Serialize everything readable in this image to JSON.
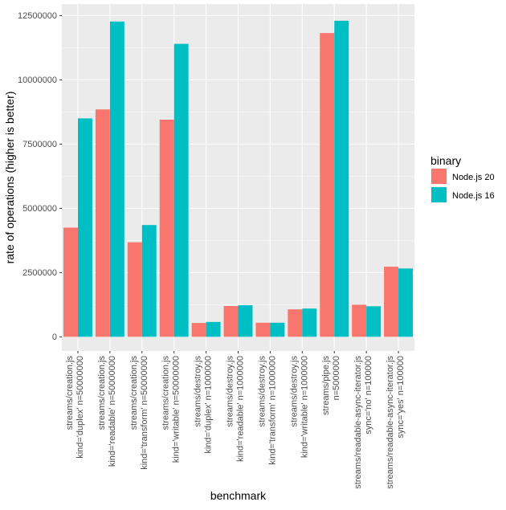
{
  "chart_data": {
    "type": "bar",
    "xlabel": "benchmark",
    "ylabel": "rate of operations (higher is better)",
    "ylim": [
      -550000,
      12950000
    ],
    "y_ticks": [
      0,
      2500000,
      5000000,
      7500000,
      10000000,
      12500000
    ],
    "y_tick_labels": [
      "0",
      "2500000",
      "5000000",
      "7500000",
      "10000000",
      "12500000"
    ],
    "grid": true,
    "legend": {
      "title": "binary",
      "placement": "right"
    },
    "categories": [
      [
        "streams/creation.js",
        "kind='duplex' n=50000000"
      ],
      [
        "streams/creation.js",
        "kind='readable' n=50000000"
      ],
      [
        "streams/creation.js",
        "kind='transform' n=50000000"
      ],
      [
        "streams/creation.js",
        "kind='writable' n=50000000"
      ],
      [
        "streams/destroy.js",
        "kind='duplex' n=1000000"
      ],
      [
        "streams/destroy.js",
        "kind='readable' n=1000000"
      ],
      [
        "streams/destroy.js",
        "kind='transform' n=1000000"
      ],
      [
        "streams/destroy.js",
        "kind='writable' n=1000000"
      ],
      [
        "streams/pipe.js",
        "n=5000000"
      ],
      [
        "streams/readable-async-iterator.js",
        "sync='no' n=100000"
      ],
      [
        "streams/readable-async-iterator.js",
        "sync='yes' n=100000"
      ]
    ],
    "series": [
      {
        "name": "Node.js 20",
        "color": "#F8766D",
        "values": [
          4250000,
          8850000,
          3680000,
          8450000,
          540000,
          1200000,
          550000,
          1070000,
          11820000,
          1250000,
          2730000
        ]
      },
      {
        "name": "Node.js 16",
        "color": "#00BFC4",
        "values": [
          8500000,
          12270000,
          4350000,
          11400000,
          580000,
          1230000,
          550000,
          1100000,
          12300000,
          1190000,
          2660000
        ]
      }
    ]
  }
}
